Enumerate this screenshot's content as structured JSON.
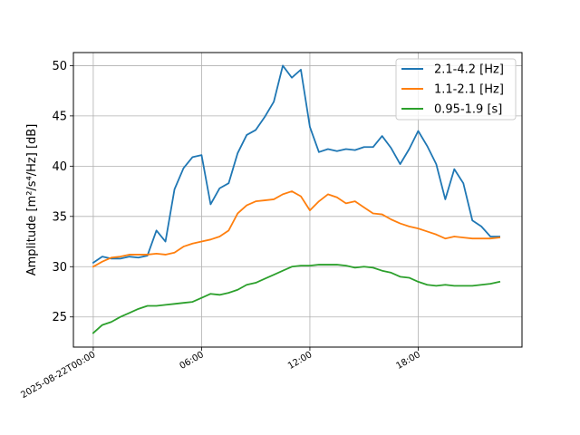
{
  "chart_data": {
    "type": "line",
    "title": "",
    "ylabel": "Amplitude [m²/s⁴/Hz] [dB]",
    "xlabel": "",
    "x_start_label": "2025-08-22T00:00",
    "x_tick_labels": [
      "2025-08-22T00:00",
      "06:00",
      "12:00",
      "18:00"
    ],
    "x_tick_hours": [
      0,
      6,
      12,
      18
    ],
    "xlim_hours": [
      -1.1,
      23.75
    ],
    "ylim": [
      22,
      51.3
    ],
    "y_ticks": [
      25,
      30,
      35,
      40,
      45,
      50
    ],
    "grid": true,
    "legend_position": "top-right",
    "series": [
      {
        "name": "2.1-4.2 [Hz]",
        "color": "#1f77b4",
        "x_hours": [
          0,
          0.5,
          1,
          1.5,
          2,
          2.5,
          3,
          3.5,
          4,
          4.5,
          5,
          5.5,
          6,
          6.5,
          7,
          7.5,
          8,
          8.5,
          9,
          9.5,
          10,
          10.5,
          11,
          11.5,
          12,
          12.5,
          13,
          13.5,
          14,
          14.5,
          15,
          15.5,
          16,
          16.5,
          17,
          17.5,
          18,
          18.5,
          19,
          19.5,
          20,
          20.5,
          21,
          21.5,
          22,
          22.5
        ],
        "values": [
          30.4,
          31.0,
          30.8,
          30.8,
          31.0,
          30.9,
          31.1,
          33.6,
          32.5,
          37.7,
          39.8,
          40.9,
          41.1,
          36.2,
          37.8,
          38.3,
          41.3,
          43.1,
          43.6,
          44.9,
          46.4,
          50.0,
          48.8,
          49.6,
          43.9,
          41.4,
          41.7,
          41.5,
          41.7,
          41.6,
          41.9,
          41.9,
          43.0,
          41.8,
          40.2,
          41.7,
          43.5,
          42.0,
          40.2,
          36.7,
          39.7,
          38.3,
          34.6,
          34.0,
          33.0,
          33.0
        ]
      },
      {
        "name": "1.1-2.1 [Hz]",
        "color": "#ff7f0e",
        "x_hours": [
          0,
          0.5,
          1,
          1.5,
          2,
          2.5,
          3,
          3.5,
          4,
          4.5,
          5,
          5.5,
          6,
          6.5,
          7,
          7.5,
          8,
          8.5,
          9,
          9.5,
          10,
          10.5,
          11,
          11.5,
          12,
          12.5,
          13,
          13.5,
          14,
          14.5,
          15,
          15.5,
          16,
          16.5,
          17,
          17.5,
          18,
          18.5,
          19,
          19.5,
          20,
          20.5,
          21,
          21.5,
          22,
          22.5
        ],
        "values": [
          30.0,
          30.5,
          30.9,
          31.0,
          31.2,
          31.2,
          31.2,
          31.3,
          31.2,
          31.4,
          32.0,
          32.3,
          32.5,
          32.7,
          33.0,
          33.6,
          35.3,
          36.1,
          36.5,
          36.6,
          36.7,
          37.2,
          37.5,
          37.0,
          35.6,
          36.5,
          37.2,
          36.9,
          36.3,
          36.5,
          35.9,
          35.3,
          35.2,
          34.7,
          34.3,
          34.0,
          33.8,
          33.5,
          33.2,
          32.8,
          33.0,
          32.9,
          32.8,
          32.8,
          32.8,
          32.9
        ]
      },
      {
        "name": "0.95-1.9 [s]",
        "color": "#2ca02c",
        "x_hours": [
          0,
          0.5,
          1,
          1.5,
          2,
          2.5,
          3,
          3.5,
          4,
          4.5,
          5,
          5.5,
          6,
          6.5,
          7,
          7.5,
          8,
          8.5,
          9,
          9.5,
          10,
          10.5,
          11,
          11.5,
          12,
          12.5,
          13,
          13.5,
          14,
          14.5,
          15,
          15.5,
          16,
          16.5,
          17,
          17.5,
          18,
          18.5,
          19,
          19.5,
          20,
          20.5,
          21,
          21.5,
          22,
          22.5
        ],
        "values": [
          23.4,
          24.2,
          24.5,
          25.0,
          25.4,
          25.8,
          26.1,
          26.1,
          26.2,
          26.3,
          26.4,
          26.5,
          26.9,
          27.3,
          27.2,
          27.4,
          27.7,
          28.2,
          28.4,
          28.8,
          29.2,
          29.6,
          30.0,
          30.1,
          30.1,
          30.2,
          30.2,
          30.2,
          30.1,
          29.9,
          30.0,
          29.9,
          29.6,
          29.4,
          29.0,
          28.9,
          28.5,
          28.2,
          28.1,
          28.2,
          28.1,
          28.1,
          28.1,
          28.2,
          28.3,
          28.5
        ]
      }
    ]
  }
}
